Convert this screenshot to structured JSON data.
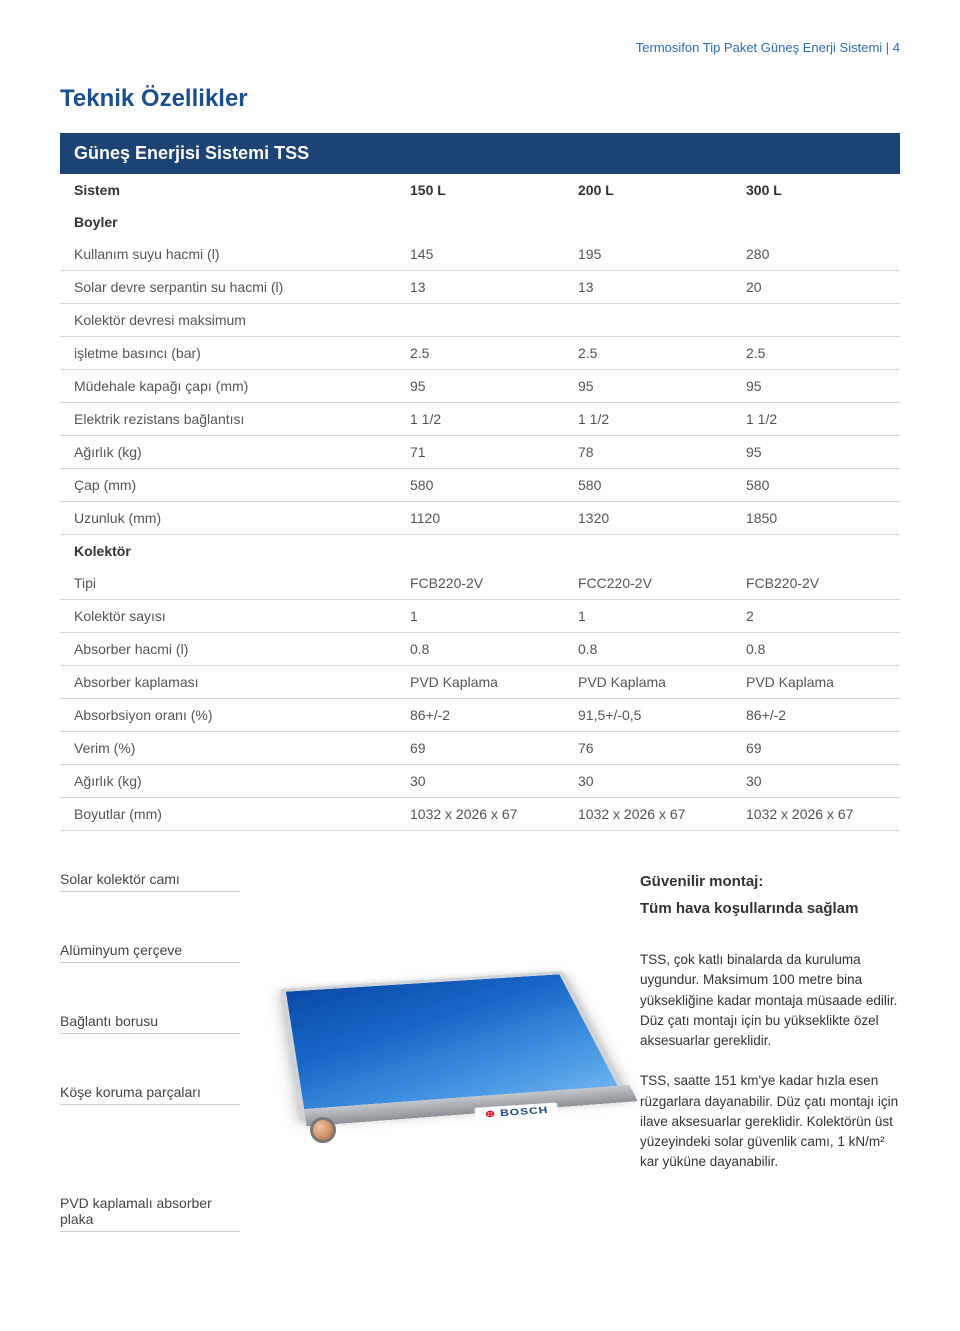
{
  "header": {
    "crumb": "Termosifon Tip Paket Güneş Enerji Sistemi | 4"
  },
  "section_title": "Teknik Özellikler",
  "table": {
    "header_color": "#1b4374",
    "header_text_color": "#ffffff",
    "row_border_color": "#d6d6d6",
    "columns": [
      "Güneş Enerjisi Sistemi TSS",
      "",
      "",
      ""
    ],
    "sistem_row": [
      "Sistem",
      "150 L",
      "200 L",
      "300 L"
    ],
    "rows": [
      {
        "type": "group",
        "cells": [
          "Boyler",
          "",
          "",
          ""
        ]
      },
      {
        "type": "data",
        "cells": [
          "Kullanım suyu hacmi (l)",
          "145",
          "195",
          "280"
        ]
      },
      {
        "type": "data",
        "cells": [
          "Solar devre serpantin su hacmi (l)",
          "13",
          "13",
          "20"
        ]
      },
      {
        "type": "data",
        "cells": [
          "Kolektör devresi maksimum",
          "",
          "",
          ""
        ]
      },
      {
        "type": "data",
        "cells": [
          "işletme basıncı (bar)",
          "2.5",
          "2.5",
          "2.5"
        ]
      },
      {
        "type": "data",
        "cells": [
          "Müdehale kapağı çapı (mm)",
          "95",
          "95",
          "95"
        ]
      },
      {
        "type": "data",
        "cells": [
          "Elektrik rezistans bağlantısı",
          "1 1/2",
          "1 1/2",
          "1 1/2"
        ]
      },
      {
        "type": "data",
        "cells": [
          "Ağırlık (kg)",
          "71",
          "78",
          "95"
        ]
      },
      {
        "type": "data",
        "cells": [
          "Çap (mm)",
          "580",
          "580",
          "580"
        ]
      },
      {
        "type": "data",
        "cells": [
          "Uzunluk (mm)",
          "1120",
          "1320",
          "1850"
        ]
      },
      {
        "type": "group",
        "cells": [
          "Kolektör",
          "",
          "",
          ""
        ]
      },
      {
        "type": "data",
        "cells": [
          "Tipi",
          "FCB220-2V",
          "FCC220-2V",
          "FCB220-2V"
        ]
      },
      {
        "type": "data",
        "cells": [
          "Kolektör sayısı",
          "1",
          "1",
          "2"
        ]
      },
      {
        "type": "data",
        "cells": [
          "Absorber hacmi (l)",
          "0.8",
          "0.8",
          "0.8"
        ]
      },
      {
        "type": "data",
        "cells": [
          "Absorber kaplaması",
          "PVD Kaplama",
          "PVD Kaplama",
          "PVD Kaplama"
        ]
      },
      {
        "type": "data",
        "cells": [
          "Absorbsiyon oranı (%)",
          "86+/-2",
          "91,5+/-0,5",
          "86+/-2"
        ]
      },
      {
        "type": "data",
        "cells": [
          "Verim (%)",
          "69",
          "76",
          "69"
        ]
      },
      {
        "type": "data",
        "cells": [
          "Ağırlık (kg)",
          "30",
          "30",
          "30"
        ]
      },
      {
        "type": "data",
        "cells": [
          "Boyutlar (mm)",
          "1032 x 2026 x 67",
          "1032 x 2026 x 67",
          "1032 x 2026 x 67"
        ]
      }
    ]
  },
  "callouts_left": [
    "Solar kolektör camı",
    "Alüminyum çerçeve",
    "Bağlantı borusu",
    "Köşe koruma parçaları"
  ],
  "callout_bottom": "PVD kaplamalı absorber plaka",
  "bosch_label": "BOSCH",
  "right_text": {
    "heading": "Güvenilir montaj:",
    "subhead": "Tüm hava koşullarında sağlam",
    "p1": "TSS, çok katlı binalarda da kuruluma uygundur. Maksimum 100 metre bina yüksekliğine kadar montaja müsaade edilir. Düz çatı montajı için bu yükseklikte özel aksesuarlar gereklidir.",
    "p2": "TSS, saatte 151 km'ye kadar hızla esen rüzgarlara dayanabilir. Düz çatı montajı için ilave aksesuarlar gereklidir. Kolektörün üst yüzeyindeki solar güvenlik camı, 1 kN/m² kar yüküne dayanabilir."
  },
  "panel_styling": {
    "gradient_start": "#0a4aa8",
    "gradient_mid1": "#1868c8",
    "gradient_mid2": "#3d8fe0",
    "gradient_end": "#6fb4f0",
    "frame_color": "#d0d4d8",
    "joint_light": "#f2c5a2",
    "joint_dark": "#b56b3e"
  }
}
